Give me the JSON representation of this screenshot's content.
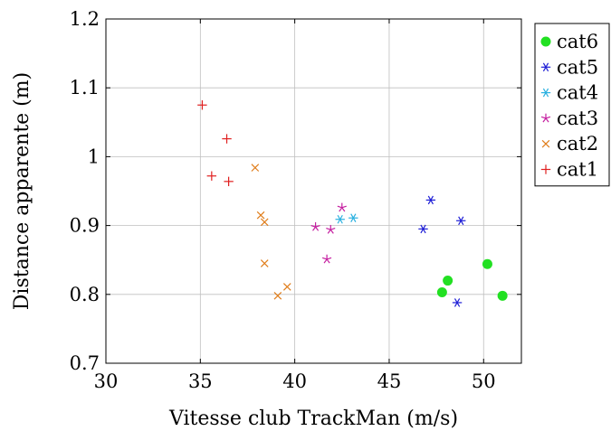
{
  "chart_data": {
    "type": "scatter",
    "xlabel": "Vitesse club TrackMan (m/s)",
    "ylabel": "Distance apparente (m)",
    "xlim": [
      30,
      52
    ],
    "ylim": [
      0.7,
      1.2
    ],
    "xticks": [
      30,
      35,
      40,
      45,
      50
    ],
    "yticks": [
      0.7,
      0.8,
      0.9,
      1.0,
      1.1,
      1.2
    ],
    "xtick_labels": [
      "30",
      "35",
      "40",
      "45",
      "50"
    ],
    "ytick_labels": [
      "0.7",
      "0.8",
      "0.9",
      "1",
      "1.1",
      "1.2"
    ],
    "grid": true,
    "legend_position": "outside-right-top",
    "series": [
      {
        "name": "cat6",
        "marker": "filled-circle",
        "color": "#22e022",
        "x": [
          47.8,
          48.1,
          50.2,
          51.0
        ],
        "y": [
          0.803,
          0.82,
          0.844,
          0.798
        ]
      },
      {
        "name": "cat5",
        "marker": "asterisk",
        "color": "#1f1fd6",
        "x": [
          46.8,
          47.2,
          48.6,
          48.8
        ],
        "y": [
          0.895,
          0.937,
          0.788,
          0.907
        ]
      },
      {
        "name": "cat4",
        "marker": "asterisk",
        "color": "#2ab0e0",
        "x": [
          42.4,
          43.1
        ],
        "y": [
          0.909,
          0.911
        ]
      },
      {
        "name": "cat3",
        "marker": "star",
        "color": "#c51fa0",
        "x": [
          41.1,
          41.7,
          41.9,
          42.5
        ],
        "y": [
          0.898,
          0.851,
          0.894,
          0.926
        ]
      },
      {
        "name": "cat2",
        "marker": "cross",
        "color": "#e07d1a",
        "x": [
          37.9,
          38.2,
          38.4,
          38.4,
          39.1,
          39.6
        ],
        "y": [
          0.984,
          0.915,
          0.905,
          0.845,
          0.798,
          0.811
        ]
      },
      {
        "name": "cat1",
        "marker": "plus",
        "color": "#e01f1f",
        "x": [
          35.1,
          35.6,
          36.4,
          36.5
        ],
        "y": [
          1.075,
          0.972,
          1.026,
          0.964
        ]
      }
    ]
  }
}
